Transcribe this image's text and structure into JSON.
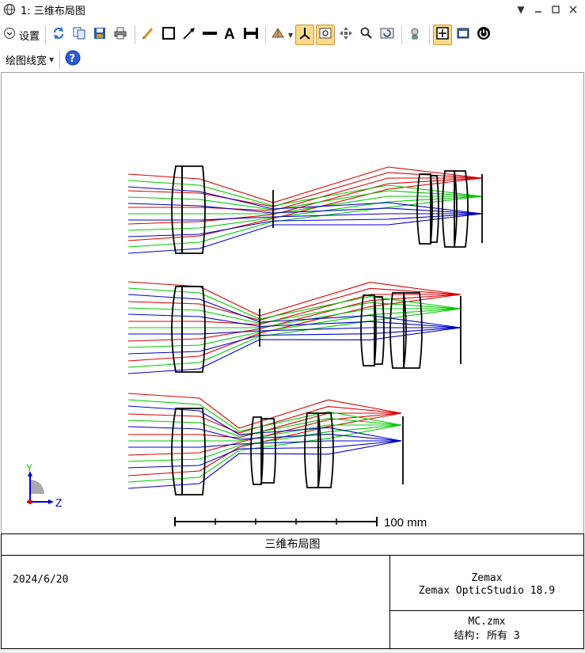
{
  "window": {
    "title": "1: 三维布局图"
  },
  "toolbar": {
    "settings_label": "设置",
    "line_width_label": "绘图线宽"
  },
  "plot": {
    "scale_label": "100 mm",
    "axis_y": "Y",
    "axis_z": "Z",
    "colors": {
      "red": "#dd0000",
      "green": "#00cc00",
      "blue": "#0000cc",
      "lens": "#000000"
    }
  },
  "footer": {
    "title": "三维布局图",
    "date": "2024/6/20",
    "company": "Zemax",
    "product": "Zemax OpticStudio 18.9",
    "file": "MC.zmx",
    "config": "结构: 所有 3"
  }
}
